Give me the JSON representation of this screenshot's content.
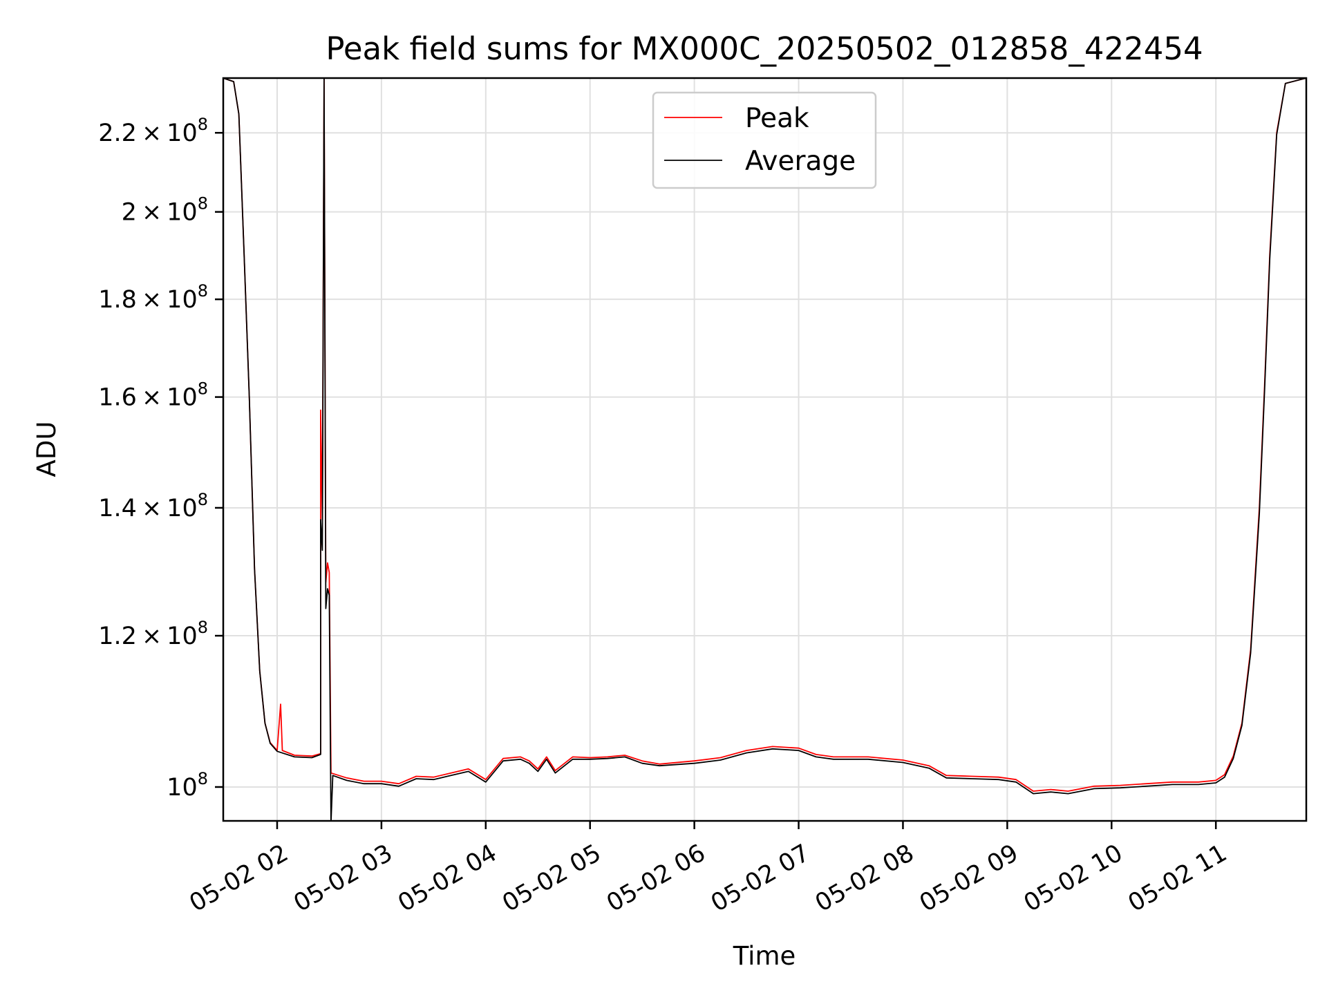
{
  "chart_data": {
    "type": "line",
    "title": "Peak field sums for MX000C_20250502_012858_422454",
    "xlabel": "Time",
    "ylabel": "ADU",
    "y_scale": "log",
    "grid": true,
    "legend_position": "upper center",
    "xlim": [
      "2025-05-02 01:29",
      "2025-05-02 11:52"
    ],
    "ylim": [
      96000000,
      235000000
    ],
    "x_ticks": [
      {
        "value": "2025-05-02 02:00",
        "label": "05-02 02"
      },
      {
        "value": "2025-05-02 03:00",
        "label": "05-02 03"
      },
      {
        "value": "2025-05-02 04:00",
        "label": "05-02 04"
      },
      {
        "value": "2025-05-02 05:00",
        "label": "05-02 05"
      },
      {
        "value": "2025-05-02 06:00",
        "label": "05-02 06"
      },
      {
        "value": "2025-05-02 07:00",
        "label": "05-02 07"
      },
      {
        "value": "2025-05-02 08:00",
        "label": "05-02 08"
      },
      {
        "value": "2025-05-02 09:00",
        "label": "05-02 09"
      },
      {
        "value": "2025-05-02 10:00",
        "label": "05-02 10"
      },
      {
        "value": "2025-05-02 11:00",
        "label": "05-02 11"
      }
    ],
    "y_ticks": [
      {
        "value": 100000000,
        "mantissa": "",
        "exponent": "8"
      },
      {
        "value": 120000000,
        "mantissa": "1.2",
        "exponent": "8"
      },
      {
        "value": 140000000,
        "mantissa": "1.4",
        "exponent": "8"
      },
      {
        "value": 160000000,
        "mantissa": "1.6",
        "exponent": "8"
      },
      {
        "value": 180000000,
        "mantissa": "1.8",
        "exponent": "8"
      },
      {
        "value": 200000000,
        "mantissa": "2",
        "exponent": "8"
      },
      {
        "value": 220000000,
        "mantissa": "2.2",
        "exponent": "8"
      }
    ],
    "series": [
      {
        "name": "Peak",
        "color": "#ff0000",
        "points": [
          [
            "2025-05-02 01:29",
            235000000
          ],
          [
            "2025-05-02 01:35",
            234000000
          ],
          [
            "2025-05-02 01:38",
            225000000
          ],
          [
            "2025-05-02 01:41",
            190000000
          ],
          [
            "2025-05-02 01:44",
            160000000
          ],
          [
            "2025-05-02 01:47",
            130000000
          ],
          [
            "2025-05-02 01:50",
            115000000
          ],
          [
            "2025-05-02 01:53",
            108000000
          ],
          [
            "2025-05-02 01:56",
            105500000
          ],
          [
            "2025-05-02 02:00",
            104500000
          ],
          [
            "2025-05-02 02:02",
            110500000
          ],
          [
            "2025-05-02 02:03",
            104500000
          ],
          [
            "2025-05-02 02:10",
            103900000
          ],
          [
            "2025-05-02 02:20",
            103800000
          ],
          [
            "2025-05-02 02:25",
            104100000
          ],
          [
            "2025-05-02 02:25",
            157500000
          ],
          [
            "2025-05-02 02:26",
            138000000
          ],
          [
            "2025-05-02 02:27",
            235000000
          ],
          [
            "2025-05-02 02:28",
            128000000
          ],
          [
            "2025-05-02 02:29",
            131000000
          ],
          [
            "2025-05-02 02:30",
            129500000
          ],
          [
            "2025-05-02 02:31",
            101700000
          ],
          [
            "2025-05-02 02:40",
            101100000
          ],
          [
            "2025-05-02 02:50",
            100700000
          ],
          [
            "2025-05-02 03:00",
            100700000
          ],
          [
            "2025-05-02 03:10",
            100400000
          ],
          [
            "2025-05-02 03:20",
            101300000
          ],
          [
            "2025-05-02 03:30",
            101200000
          ],
          [
            "2025-05-02 03:40",
            101700000
          ],
          [
            "2025-05-02 03:50",
            102200000
          ],
          [
            "2025-05-02 04:00",
            100900000
          ],
          [
            "2025-05-02 04:10",
            103500000
          ],
          [
            "2025-05-02 04:20",
            103700000
          ],
          [
            "2025-05-02 04:25",
            103200000
          ],
          [
            "2025-05-02 04:30",
            102200000
          ],
          [
            "2025-05-02 04:35",
            103700000
          ],
          [
            "2025-05-02 04:40",
            102000000
          ],
          [
            "2025-05-02 04:50",
            103700000
          ],
          [
            "2025-05-02 05:00",
            103600000
          ],
          [
            "2025-05-02 05:10",
            103700000
          ],
          [
            "2025-05-02 05:20",
            103900000
          ],
          [
            "2025-05-02 05:30",
            103200000
          ],
          [
            "2025-05-02 05:40",
            102800000
          ],
          [
            "2025-05-02 06:00",
            103200000
          ],
          [
            "2025-05-02 06:15",
            103600000
          ],
          [
            "2025-05-02 06:30",
            104500000
          ],
          [
            "2025-05-02 06:45",
            105000000
          ],
          [
            "2025-05-02 07:00",
            104800000
          ],
          [
            "2025-05-02 07:10",
            104000000
          ],
          [
            "2025-05-02 07:20",
            103700000
          ],
          [
            "2025-05-02 07:40",
            103700000
          ],
          [
            "2025-05-02 08:00",
            103300000
          ],
          [
            "2025-05-02 08:15",
            102600000
          ],
          [
            "2025-05-02 08:25",
            101400000
          ],
          [
            "2025-05-02 08:40",
            101300000
          ],
          [
            "2025-05-02 08:55",
            101200000
          ],
          [
            "2025-05-02 09:05",
            100900000
          ],
          [
            "2025-05-02 09:15",
            99500000
          ],
          [
            "2025-05-02 09:25",
            99700000
          ],
          [
            "2025-05-02 09:35",
            99500000
          ],
          [
            "2025-05-02 09:50",
            100100000
          ],
          [
            "2025-05-02 10:05",
            100200000
          ],
          [
            "2025-05-02 10:20",
            100400000
          ],
          [
            "2025-05-02 10:35",
            100600000
          ],
          [
            "2025-05-02 10:50",
            100600000
          ],
          [
            "2025-05-02 11:00",
            100800000
          ],
          [
            "2025-05-02 11:05",
            101500000
          ],
          [
            "2025-05-02 11:10",
            103800000
          ],
          [
            "2025-05-02 11:15",
            108000000
          ],
          [
            "2025-05-02 11:20",
            118000000
          ],
          [
            "2025-05-02 11:25",
            140000000
          ],
          [
            "2025-05-02 11:28",
            162000000
          ],
          [
            "2025-05-02 11:31",
            190000000
          ],
          [
            "2025-05-02 11:35",
            220000000
          ],
          [
            "2025-05-02 11:40",
            233500000
          ],
          [
            "2025-05-02 11:52",
            235000000
          ]
        ]
      },
      {
        "name": "Average",
        "color": "#000000",
        "points": [
          [
            "2025-05-02 01:29",
            235000000
          ],
          [
            "2025-05-02 01:35",
            234000000
          ],
          [
            "2025-05-02 01:38",
            225000000
          ],
          [
            "2025-05-02 01:41",
            190000000
          ],
          [
            "2025-05-02 01:44",
            160000000
          ],
          [
            "2025-05-02 01:47",
            130000000
          ],
          [
            "2025-05-02 01:50",
            115000000
          ],
          [
            "2025-05-02 01:53",
            108000000
          ],
          [
            "2025-05-02 01:56",
            105400000
          ],
          [
            "2025-05-02 02:00",
            104400000
          ],
          [
            "2025-05-02 02:10",
            103700000
          ],
          [
            "2025-05-02 02:20",
            103600000
          ],
          [
            "2025-05-02 02:25",
            104000000
          ],
          [
            "2025-05-02 02:25",
            138000000
          ],
          [
            "2025-05-02 02:26",
            133000000
          ],
          [
            "2025-05-02 02:27",
            235000000
          ],
          [
            "2025-05-02 02:28",
            124000000
          ],
          [
            "2025-05-02 02:29",
            127000000
          ],
          [
            "2025-05-02 02:30",
            126000000
          ],
          [
            "2025-05-02 02:31",
            95800000
          ],
          [
            "2025-05-02 02:32",
            101400000
          ],
          [
            "2025-05-02 02:40",
            100800000
          ],
          [
            "2025-05-02 02:50",
            100400000
          ],
          [
            "2025-05-02 03:00",
            100400000
          ],
          [
            "2025-05-02 03:10",
            100100000
          ],
          [
            "2025-05-02 03:20",
            101000000
          ],
          [
            "2025-05-02 03:30",
            100900000
          ],
          [
            "2025-05-02 03:40",
            101400000
          ],
          [
            "2025-05-02 03:50",
            101900000
          ],
          [
            "2025-05-02 04:00",
            100600000
          ],
          [
            "2025-05-02 04:10",
            103200000
          ],
          [
            "2025-05-02 04:20",
            103400000
          ],
          [
            "2025-05-02 04:25",
            102900000
          ],
          [
            "2025-05-02 04:30",
            101900000
          ],
          [
            "2025-05-02 04:35",
            103400000
          ],
          [
            "2025-05-02 04:40",
            101700000
          ],
          [
            "2025-05-02 04:50",
            103400000
          ],
          [
            "2025-05-02 05:00",
            103400000
          ],
          [
            "2025-05-02 05:10",
            103500000
          ],
          [
            "2025-05-02 05:20",
            103700000
          ],
          [
            "2025-05-02 05:30",
            102900000
          ],
          [
            "2025-05-02 05:40",
            102600000
          ],
          [
            "2025-05-02 06:00",
            102900000
          ],
          [
            "2025-05-02 06:15",
            103300000
          ],
          [
            "2025-05-02 06:30",
            104200000
          ],
          [
            "2025-05-02 06:45",
            104700000
          ],
          [
            "2025-05-02 07:00",
            104500000
          ],
          [
            "2025-05-02 07:10",
            103700000
          ],
          [
            "2025-05-02 07:20",
            103400000
          ],
          [
            "2025-05-02 07:40",
            103400000
          ],
          [
            "2025-05-02 08:00",
            103000000
          ],
          [
            "2025-05-02 08:15",
            102300000
          ],
          [
            "2025-05-02 08:25",
            101100000
          ],
          [
            "2025-05-02 08:40",
            101000000
          ],
          [
            "2025-05-02 08:55",
            100900000
          ],
          [
            "2025-05-02 09:05",
            100600000
          ],
          [
            "2025-05-02 09:15",
            99200000
          ],
          [
            "2025-05-02 09:25",
            99400000
          ],
          [
            "2025-05-02 09:35",
            99200000
          ],
          [
            "2025-05-02 09:50",
            99800000
          ],
          [
            "2025-05-02 10:05",
            99900000
          ],
          [
            "2025-05-02 10:20",
            100100000
          ],
          [
            "2025-05-02 10:35",
            100300000
          ],
          [
            "2025-05-02 10:50",
            100300000
          ],
          [
            "2025-05-02 11:00",
            100500000
          ],
          [
            "2025-05-02 11:05",
            101200000
          ],
          [
            "2025-05-02 11:10",
            103500000
          ],
          [
            "2025-05-02 11:15",
            107700000
          ],
          [
            "2025-05-02 11:20",
            117500000
          ],
          [
            "2025-05-02 11:25",
            139000000
          ],
          [
            "2025-05-02 11:28",
            161000000
          ],
          [
            "2025-05-02 11:31",
            189000000
          ],
          [
            "2025-05-02 11:35",
            219500000
          ],
          [
            "2025-05-02 11:40",
            233500000
          ],
          [
            "2025-05-02 11:52",
            235000000
          ]
        ]
      }
    ]
  }
}
